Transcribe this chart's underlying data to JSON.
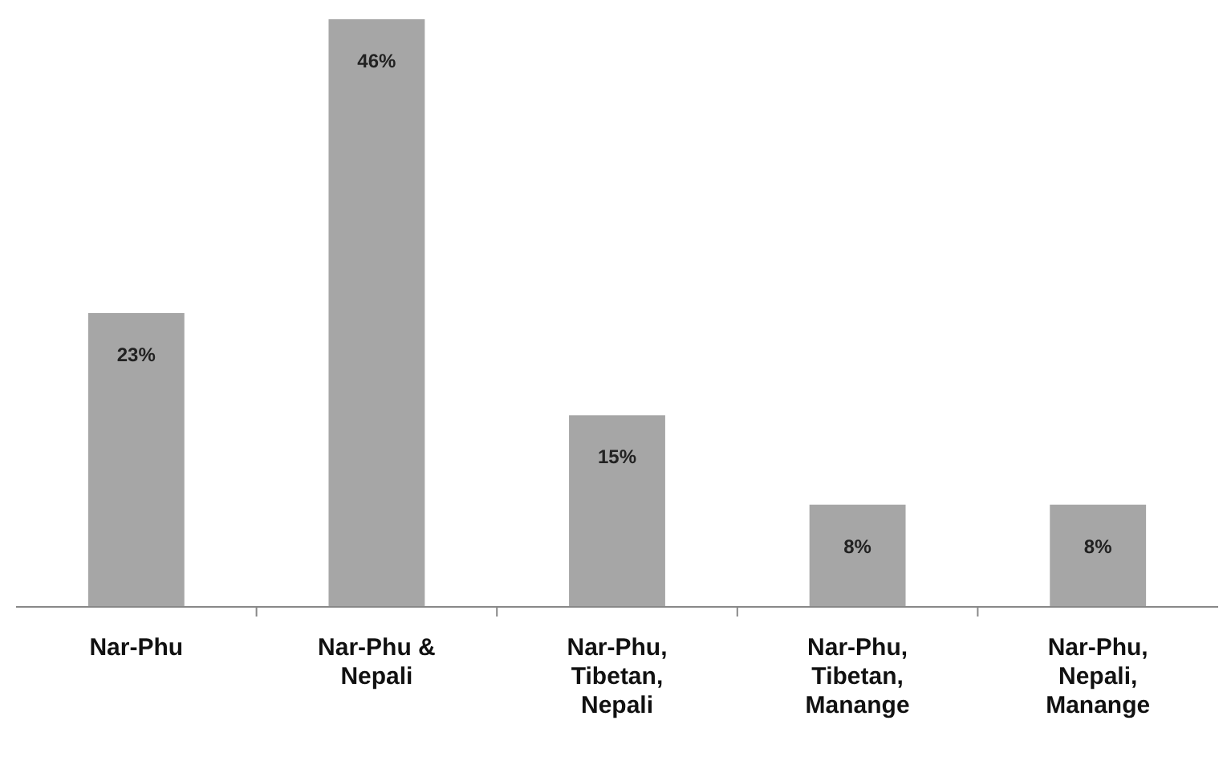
{
  "chart_data": {
    "type": "bar",
    "categories": [
      "Nar-Phu",
      "Nar-Phu & Nepali",
      "Nar-Phu, Tibetan, Nepali",
      "Nar-Phu, Tibetan, Manange",
      "Nar-Phu, Nepali, Manange"
    ],
    "values": [
      23,
      46,
      15,
      8,
      8
    ],
    "value_labels": [
      "23%",
      "46%",
      "15%",
      "8%",
      "8%"
    ],
    "color": "#a6a6a6"
  }
}
